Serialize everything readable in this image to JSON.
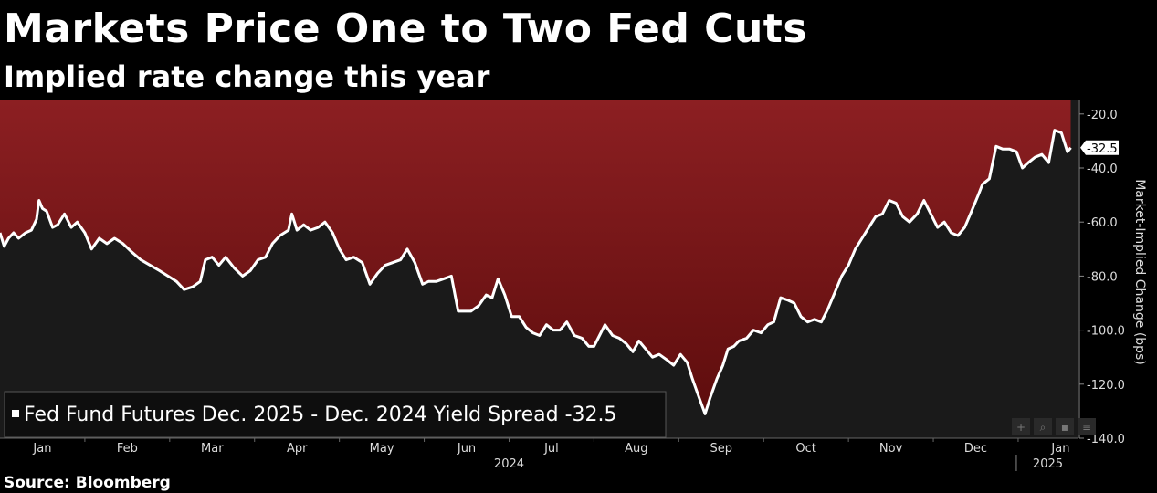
{
  "title": "Markets Price One to Two Fed Cuts",
  "subtitle": "Implied rate change this year",
  "source": "Source: Bloomberg",
  "chart_data": {
    "type": "area",
    "ylabel": "Market-Implied Change (bps)",
    "ylim": [
      -140,
      -15
    ],
    "yticks": [
      -20.0,
      -40.0,
      -60.0,
      -80.0,
      -100.0,
      -120.0,
      -140.0
    ],
    "ytick_labels": [
      "-20.0",
      "-40.0",
      "-60.0",
      "-80.0",
      "-100.0",
      "-120.0",
      "-140.0"
    ],
    "x_range": [
      0,
      12.7
    ],
    "x_unit_note": "months from 2024-01-01",
    "xticks": [
      {
        "label": "Jan",
        "x": 0.5
      },
      {
        "label": "Feb",
        "x": 1.5
      },
      {
        "label": "Mar",
        "x": 2.5
      },
      {
        "label": "Apr",
        "x": 3.5
      },
      {
        "label": "May",
        "x": 4.5
      },
      {
        "label": "Jun",
        "x": 5.5
      },
      {
        "label": "Jul",
        "x": 6.5
      },
      {
        "label": "Aug",
        "x": 7.5
      },
      {
        "label": "Sep",
        "x": 8.5
      },
      {
        "label": "Oct",
        "x": 9.5
      },
      {
        "label": "Nov",
        "x": 10.5
      },
      {
        "label": "Dec",
        "x": 11.5
      },
      {
        "label": "Jan",
        "x": 12.5
      }
    ],
    "year_labels": [
      {
        "label": "2024",
        "x": 6.0
      },
      {
        "label": "2025",
        "x": 12.35
      }
    ],
    "year_separator_x": 12.0,
    "series": [
      {
        "name": "Fed Fund Futures Dec. 2025 - Dec. 2024 Yield Spread",
        "last_value": -32.5,
        "last_value_label": "-32.5",
        "points": [
          [
            0.0,
            -64
          ],
          [
            0.05,
            -69
          ],
          [
            0.1,
            -66
          ],
          [
            0.16,
            -64
          ],
          [
            0.22,
            -66
          ],
          [
            0.3,
            -64
          ],
          [
            0.37,
            -63
          ],
          [
            0.43,
            -59
          ],
          [
            0.46,
            -52
          ],
          [
            0.5,
            -55
          ],
          [
            0.55,
            -56
          ],
          [
            0.62,
            -62
          ],
          [
            0.68,
            -61
          ],
          [
            0.76,
            -57
          ],
          [
            0.84,
            -62
          ],
          [
            0.91,
            -60
          ],
          [
            1.0,
            -64
          ],
          [
            1.08,
            -70
          ],
          [
            1.17,
            -66
          ],
          [
            1.26,
            -68
          ],
          [
            1.35,
            -66
          ],
          [
            1.45,
            -68
          ],
          [
            1.55,
            -71
          ],
          [
            1.66,
            -74
          ],
          [
            1.77,
            -76
          ],
          [
            1.88,
            -78
          ],
          [
            1.98,
            -80
          ],
          [
            2.08,
            -82
          ],
          [
            2.17,
            -85
          ],
          [
            2.27,
            -84
          ],
          [
            2.36,
            -82
          ],
          [
            2.42,
            -74
          ],
          [
            2.5,
            -73
          ],
          [
            2.58,
            -76
          ],
          [
            2.66,
            -73
          ],
          [
            2.76,
            -77
          ],
          [
            2.86,
            -80
          ],
          [
            2.95,
            -78
          ],
          [
            3.04,
            -74
          ],
          [
            3.13,
            -73
          ],
          [
            3.21,
            -68
          ],
          [
            3.3,
            -65
          ],
          [
            3.4,
            -63
          ],
          [
            3.44,
            -57
          ],
          [
            3.5,
            -63
          ],
          [
            3.58,
            -61
          ],
          [
            3.66,
            -63
          ],
          [
            3.75,
            -62
          ],
          [
            3.83,
            -60
          ],
          [
            3.92,
            -64
          ],
          [
            4.0,
            -70
          ],
          [
            4.08,
            -74
          ],
          [
            4.17,
            -73
          ],
          [
            4.27,
            -75
          ],
          [
            4.36,
            -83
          ],
          [
            4.45,
            -79
          ],
          [
            4.54,
            -76
          ],
          [
            4.63,
            -75
          ],
          [
            4.72,
            -74
          ],
          [
            4.8,
            -70
          ],
          [
            4.89,
            -75
          ],
          [
            4.98,
            -83
          ],
          [
            5.05,
            -82
          ],
          [
            5.14,
            -82
          ],
          [
            5.23,
            -81
          ],
          [
            5.32,
            -80
          ],
          [
            5.4,
            -93
          ],
          [
            5.47,
            -93
          ],
          [
            5.55,
            -93
          ],
          [
            5.64,
            -91
          ],
          [
            5.73,
            -87
          ],
          [
            5.8,
            -88
          ],
          [
            5.87,
            -81
          ],
          [
            5.95,
            -87
          ],
          [
            6.03,
            -95
          ],
          [
            6.12,
            -95
          ],
          [
            6.2,
            -99
          ],
          [
            6.28,
            -101
          ],
          [
            6.36,
            -102
          ],
          [
            6.44,
            -98
          ],
          [
            6.52,
            -100
          ],
          [
            6.6,
            -100
          ],
          [
            6.68,
            -97
          ],
          [
            6.77,
            -102
          ],
          [
            6.86,
            -103
          ],
          [
            6.94,
            -106
          ],
          [
            7.0,
            -106
          ],
          [
            7.05,
            -103
          ],
          [
            7.13,
            -98
          ],
          [
            7.22,
            -102
          ],
          [
            7.3,
            -103
          ],
          [
            7.38,
            -105
          ],
          [
            7.46,
            -108
          ],
          [
            7.53,
            -104
          ],
          [
            7.61,
            -107
          ],
          [
            7.69,
            -110
          ],
          [
            7.77,
            -109
          ],
          [
            7.86,
            -111
          ],
          [
            7.94,
            -113
          ],
          [
            8.02,
            -109
          ],
          [
            8.1,
            -112
          ],
          [
            8.16,
            -118
          ],
          [
            8.24,
            -125
          ],
          [
            8.31,
            -131
          ],
          [
            8.37,
            -125
          ],
          [
            8.45,
            -118
          ],
          [
            8.52,
            -113
          ],
          [
            8.58,
            -107
          ],
          [
            8.65,
            -106
          ],
          [
            8.71,
            -104
          ],
          [
            8.8,
            -103
          ],
          [
            8.88,
            -100
          ],
          [
            8.97,
            -101
          ],
          [
            9.05,
            -98
          ],
          [
            9.12,
            -97
          ],
          [
            9.2,
            -88
          ],
          [
            9.29,
            -89
          ],
          [
            9.36,
            -90
          ],
          [
            9.44,
            -95
          ],
          [
            9.52,
            -97
          ],
          [
            9.6,
            -96
          ],
          [
            9.68,
            -97
          ],
          [
            9.76,
            -92
          ],
          [
            9.84,
            -86
          ],
          [
            9.92,
            -80
          ],
          [
            10.0,
            -76
          ],
          [
            10.08,
            -70
          ],
          [
            10.16,
            -66
          ],
          [
            10.24,
            -62
          ],
          [
            10.32,
            -58
          ],
          [
            10.4,
            -57
          ],
          [
            10.48,
            -52
          ],
          [
            10.56,
            -53
          ],
          [
            10.64,
            -58
          ],
          [
            10.72,
            -60
          ],
          [
            10.81,
            -57
          ],
          [
            10.89,
            -52
          ],
          [
            10.97,
            -57
          ],
          [
            11.05,
            -62
          ],
          [
            11.13,
            -60
          ],
          [
            11.21,
            -64
          ],
          [
            11.29,
            -65
          ],
          [
            11.37,
            -62
          ],
          [
            11.45,
            -56
          ],
          [
            11.53,
            -50
          ],
          [
            11.58,
            -46
          ],
          [
            11.66,
            -44
          ],
          [
            11.74,
            -32
          ],
          [
            11.82,
            -33
          ],
          [
            11.9,
            -33
          ],
          [
            11.98,
            -34
          ],
          [
            12.05,
            -40
          ],
          [
            12.12,
            -38
          ],
          [
            12.2,
            -36
          ],
          [
            12.28,
            -35
          ],
          [
            12.36,
            -38
          ],
          [
            12.43,
            -26
          ],
          [
            12.51,
            -27
          ],
          [
            12.58,
            -34
          ],
          [
            12.62,
            -32.5
          ]
        ]
      }
    ],
    "legend": "bottom-left",
    "legend_label": "Fed Fund Futures Dec. 2025 - Dec. 2024 Yield Spread -32.5",
    "colors": {
      "fill_top": "#8c1f22",
      "fill_bottom": "#5e0d0d",
      "plot_bg": "#1a1a1a",
      "line": "#ffffff",
      "marker": "#ffffff"
    },
    "toolbar_icons": [
      "crosshair-icon",
      "zoom-icon",
      "save-icon",
      "chart-icon"
    ]
  }
}
